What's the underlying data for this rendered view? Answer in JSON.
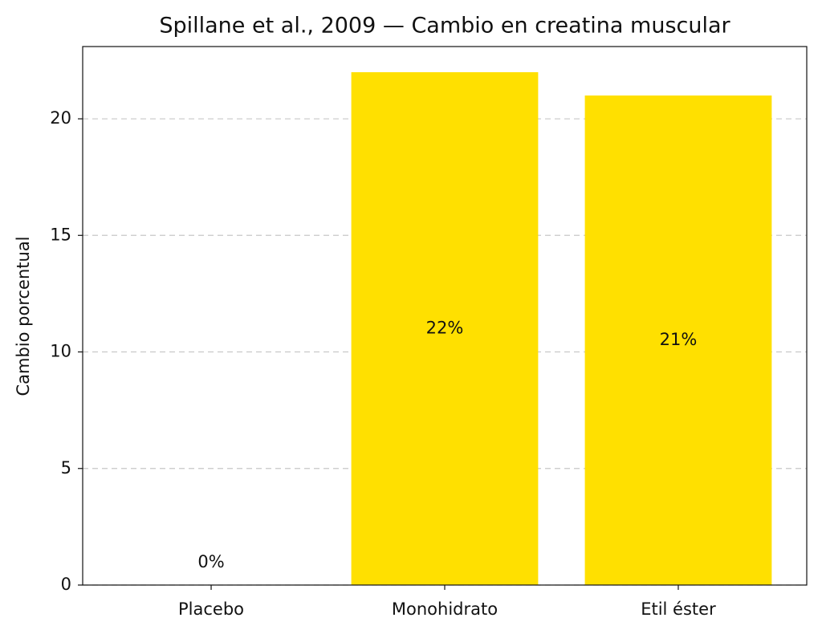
{
  "chart_data": {
    "type": "bar",
    "title": "Spillane et al., 2009 — Cambio en creatina muscular",
    "y_label": "Cambio porcentual",
    "categories": [
      "Placebo",
      "Monohidrato",
      "Etil éster"
    ],
    "values": [
      0,
      22,
      21
    ],
    "value_labels": [
      "0%",
      "22%",
      "21%"
    ],
    "color": "#ffe000",
    "ylim": [
      0,
      23.1
    ],
    "yticks": [
      0,
      5,
      10,
      15,
      20
    ],
    "grid": true
  }
}
